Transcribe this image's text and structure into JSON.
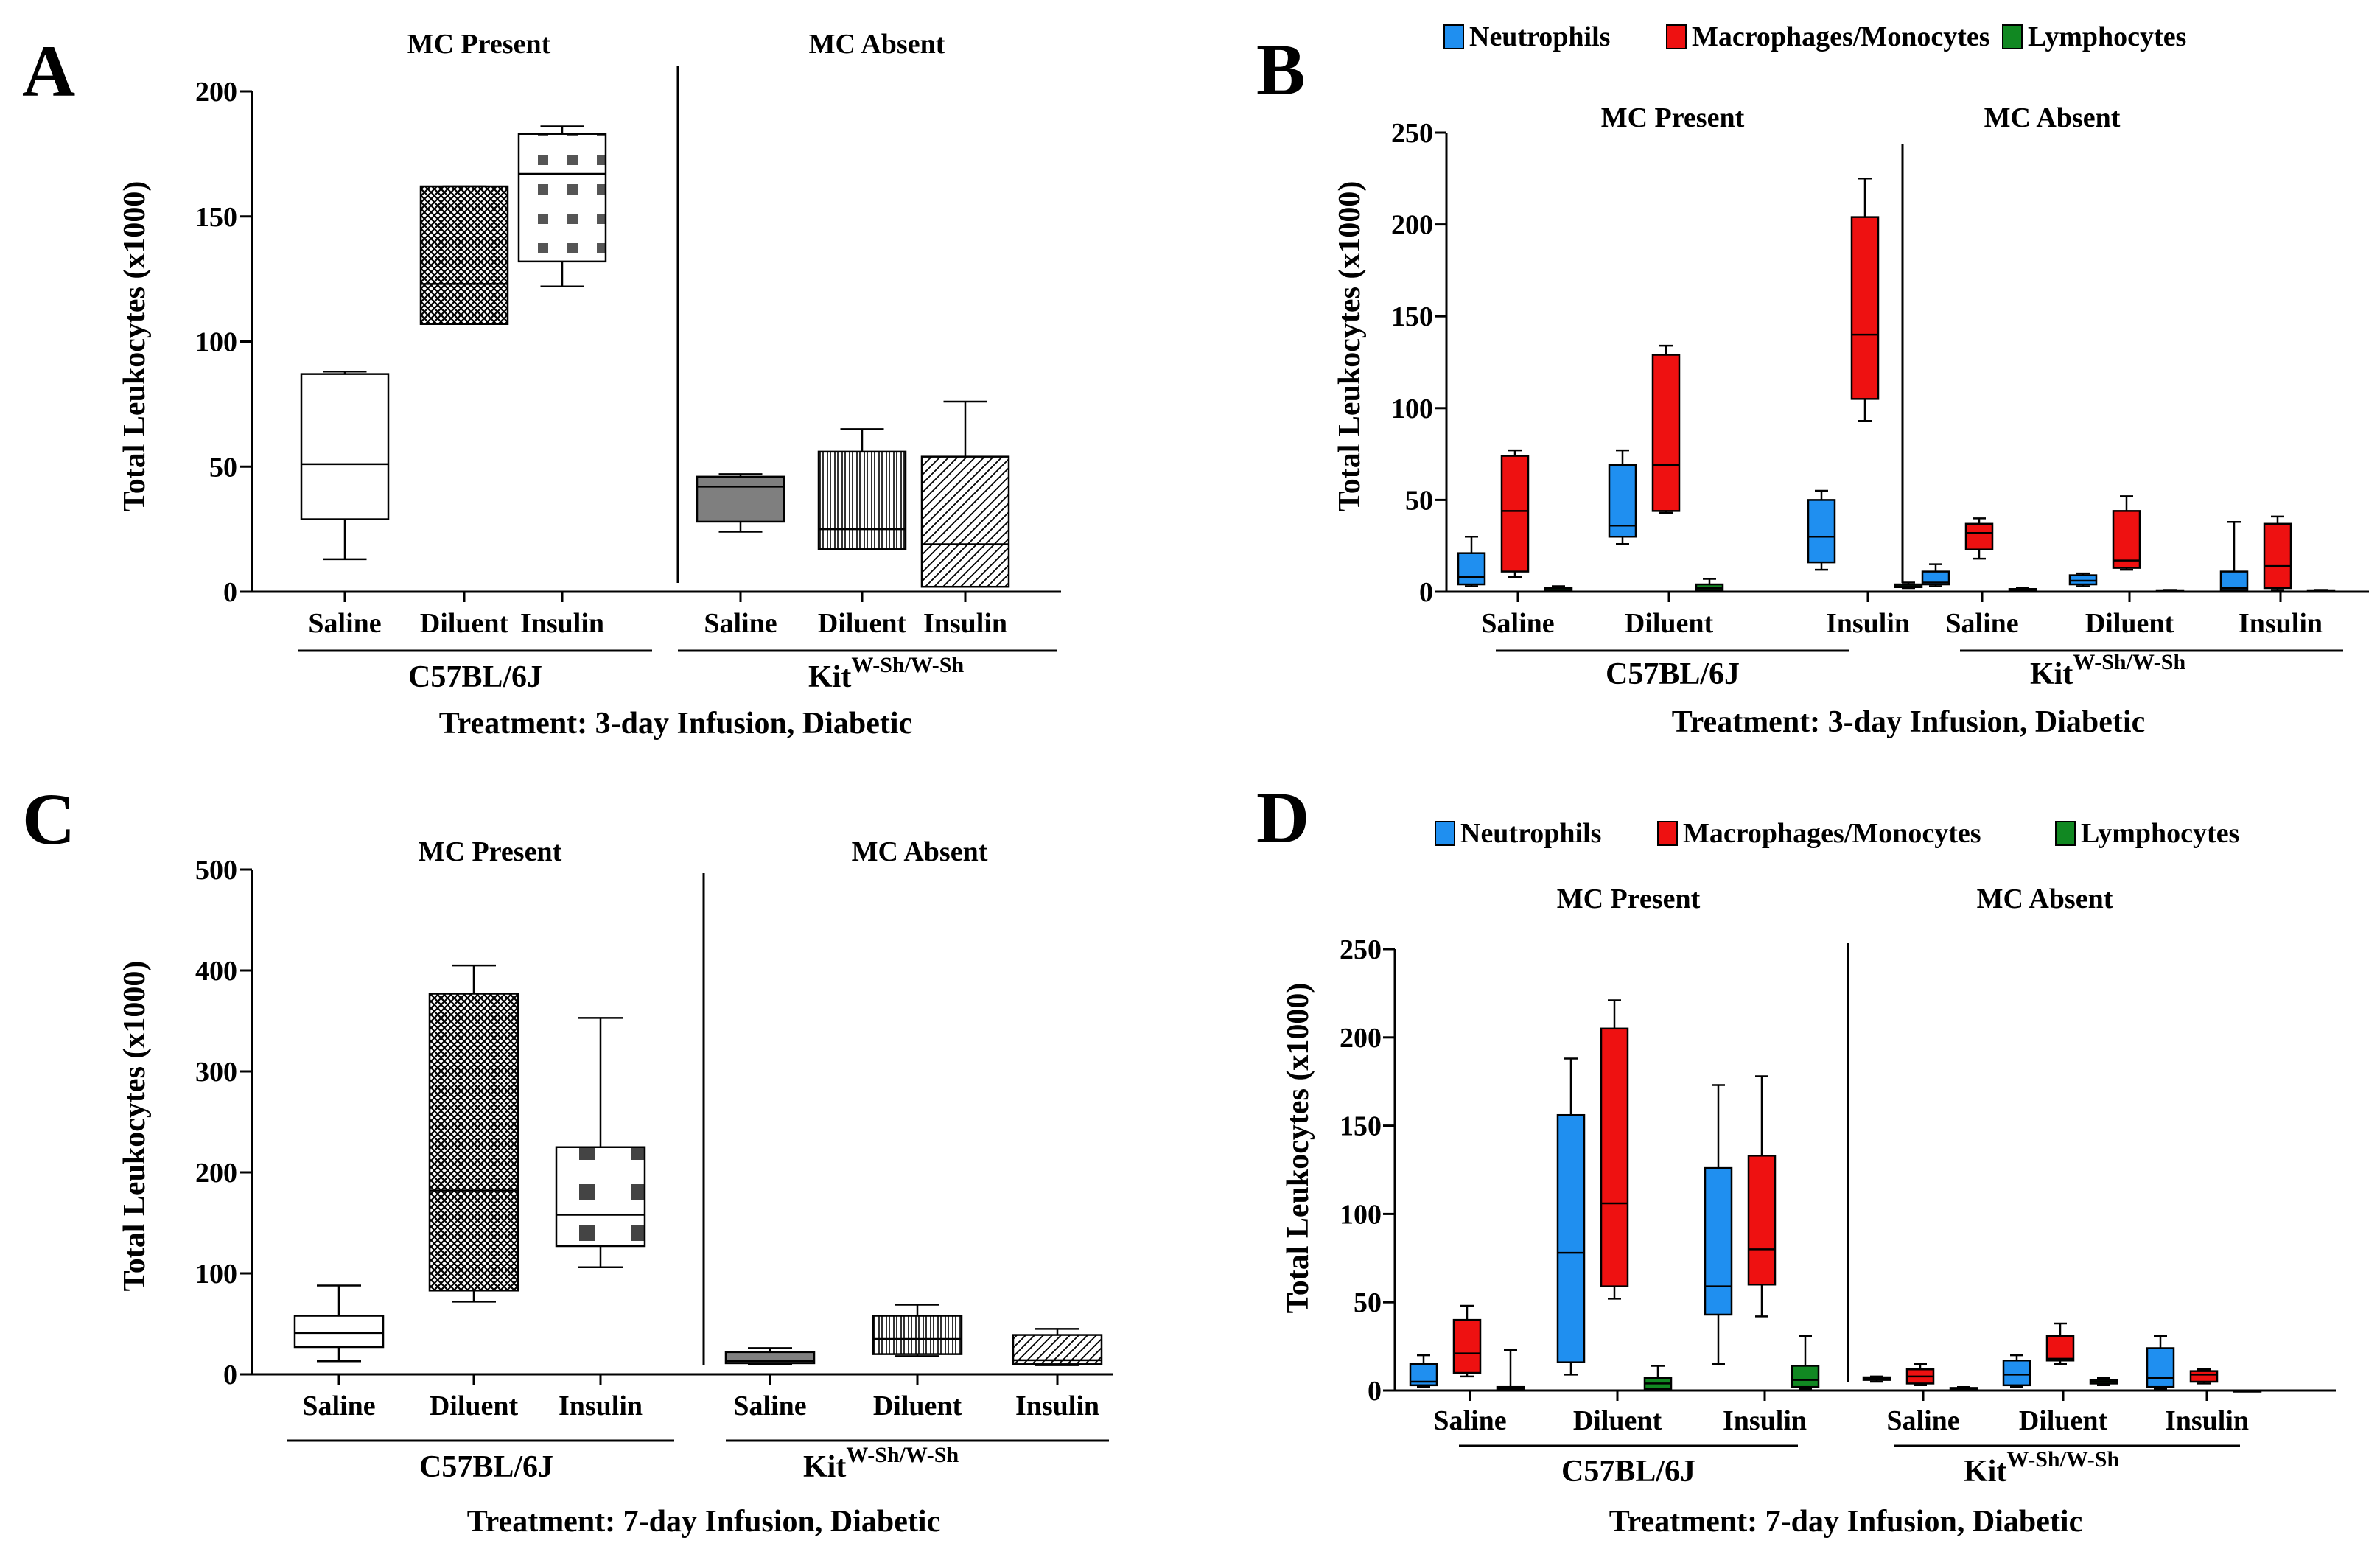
{
  "figure": {
    "colors": {
      "neutrophils": "#1f8ff0",
      "macrophages": "#ee1111",
      "lymphocytes": "#118822",
      "ink": "#000000",
      "dark_fill": "#7f7f7f"
    }
  },
  "chart_data": [
    {
      "type": "box",
      "panel": "A",
      "title_left": "MC Present",
      "title_right": "MC Absent",
      "ylabel": "Total Leukocytes (x1000)",
      "ylim": [
        0,
        200
      ],
      "yticks": [
        0,
        50,
        100,
        150,
        200
      ],
      "categories": [
        "Saline",
        "Diluent",
        "Insulin",
        "Saline",
        "Diluent",
        "Insulin"
      ],
      "strain_left": "C57BL/6J",
      "strain_right_base": "Kit",
      "strain_right_sup": "W-Sh/W-Sh",
      "treatment": "Treatment: 3-day Infusion, Diabetic",
      "boxes": [
        {
          "group": "Saline",
          "strain": "C57BL/6J",
          "min": 13,
          "q1": 29,
          "median": 51,
          "q3": 87,
          "max": 88,
          "pattern": "white"
        },
        {
          "group": "Diluent",
          "strain": "C57BL/6J",
          "min": 107,
          "q1": 107,
          "median": 123,
          "q3": 162,
          "max": 162,
          "pattern": "crosshatch"
        },
        {
          "group": "Insulin",
          "strain": "C57BL/6J",
          "min": 122,
          "q1": 132,
          "median": 167,
          "q3": 183,
          "max": 186,
          "pattern": "dots"
        },
        {
          "group": "Saline",
          "strain": "KitW-Sh/W-Sh",
          "min": 24,
          "q1": 28,
          "median": 42,
          "q3": 46,
          "max": 47,
          "pattern": "gray"
        },
        {
          "group": "Diluent",
          "strain": "KitW-Sh/W-Sh",
          "min": 17,
          "q1": 17,
          "median": 25,
          "q3": 56,
          "max": 65,
          "pattern": "vlines"
        },
        {
          "group": "Insulin",
          "strain": "KitW-Sh/W-Sh",
          "min": 2,
          "q1": 2,
          "median": 19,
          "q3": 54,
          "max": 76,
          "pattern": "diag"
        }
      ]
    },
    {
      "type": "box",
      "panel": "B",
      "title_left": "MC Present",
      "title_right": "MC Absent",
      "ylabel": "Total Leukocytes (x1000)",
      "ylim": [
        0,
        250
      ],
      "yticks": [
        0,
        50,
        100,
        150,
        200,
        250
      ],
      "legend": [
        "Neutrophils",
        "Macrophages/Monocytes",
        "Lymphocytes"
      ],
      "categories": [
        "Saline",
        "Diluent",
        "Insulin",
        "Saline",
        "Diluent",
        "Insulin"
      ],
      "strain_left": "C57BL/6J",
      "strain_right_base": "Kit",
      "strain_right_sup": "W-Sh/W-Sh",
      "treatment": "Treatment: 3-day Infusion, Diabetic",
      "series": [
        {
          "name": "Neutrophils",
          "boxes": [
            {
              "min": 3,
              "q1": 4,
              "median": 8,
              "q3": 21,
              "max": 30
            },
            {
              "min": 26,
              "q1": 30,
              "median": 36,
              "q3": 69,
              "max": 77
            },
            {
              "min": 12,
              "q1": 16,
              "median": 30,
              "q3": 50,
              "max": 55
            },
            {
              "min": 3,
              "q1": 4,
              "median": 5,
              "q3": 11,
              "max": 15
            },
            {
              "min": 3,
              "q1": 4,
              "median": 6,
              "q3": 9,
              "max": 10
            },
            {
              "min": 1,
              "q1": 1,
              "median": 2,
              "q3": 11,
              "max": 38
            }
          ]
        },
        {
          "name": "Macrophages/Monocytes",
          "boxes": [
            {
              "min": 8,
              "q1": 11,
              "median": 44,
              "q3": 74,
              "max": 77
            },
            {
              "min": 43,
              "q1": 44,
              "median": 69,
              "q3": 129,
              "max": 134
            },
            {
              "min": 93,
              "q1": 105,
              "median": 140,
              "q3": 204,
              "max": 225
            },
            {
              "min": 18,
              "q1": 23,
              "median": 32,
              "q3": 37,
              "max": 40
            },
            {
              "min": 12,
              "q1": 13,
              "median": 17,
              "q3": 44,
              "max": 52
            },
            {
              "min": 1,
              "q1": 2,
              "median": 14,
              "q3": 37,
              "max": 41
            }
          ]
        },
        {
          "name": "Lymphocytes",
          "boxes": [
            {
              "min": 0,
              "q1": 0.5,
              "median": 1,
              "q3": 2,
              "max": 3
            },
            {
              "min": 0,
              "q1": 1,
              "median": 2,
              "q3": 4,
              "max": 7
            },
            {
              "min": 2,
              "q1": 2.5,
              "median": 3,
              "q3": 4,
              "max": 5
            },
            {
              "min": 0,
              "q1": 0.5,
              "median": 1,
              "q3": 1.5,
              "max": 2
            },
            {
              "min": 0,
              "q1": 0,
              "median": 0.5,
              "q3": 0.8,
              "max": 1
            },
            {
              "min": 0,
              "q1": 0,
              "median": 0.5,
              "q3": 0.8,
              "max": 1
            }
          ]
        }
      ]
    },
    {
      "type": "box",
      "panel": "C",
      "title_left": "MC Present",
      "title_right": "MC Absent",
      "ylabel": "Total Leukocytes (x1000)",
      "ylim": [
        0,
        500
      ],
      "yticks": [
        0,
        100,
        200,
        300,
        400,
        500
      ],
      "categories": [
        "Saline",
        "Diluent",
        "Insulin",
        "Saline",
        "Diluent",
        "Insulin"
      ],
      "strain_left": "C57BL/6J",
      "strain_right_base": "Kit",
      "strain_right_sup": "W-Sh/W-Sh",
      "treatment": "Treatment: 7-day Infusion, Diabetic",
      "boxes": [
        {
          "group": "Saline",
          "strain": "C57BL/6J",
          "min": 13,
          "q1": 27,
          "median": 41,
          "q3": 58,
          "max": 88,
          "pattern": "white"
        },
        {
          "group": "Diluent",
          "strain": "C57BL/6J",
          "min": 72,
          "q1": 83,
          "median": 182,
          "q3": 377,
          "max": 405,
          "pattern": "crosshatch"
        },
        {
          "group": "Insulin",
          "strain": "C57BL/6J",
          "min": 106,
          "q1": 127,
          "median": 158,
          "q3": 225,
          "max": 353,
          "pattern": "dots"
        },
        {
          "group": "Saline",
          "strain": "KitW-Sh/W-Sh",
          "min": 10,
          "q1": 11,
          "median": 13,
          "q3": 22,
          "max": 26,
          "pattern": "gray"
        },
        {
          "group": "Diluent",
          "strain": "KitW-Sh/W-Sh",
          "min": 18,
          "q1": 20,
          "median": 35,
          "q3": 58,
          "max": 69,
          "pattern": "vlines"
        },
        {
          "group": "Insulin",
          "strain": "KitW-Sh/W-Sh",
          "min": 9,
          "q1": 10,
          "median": 14,
          "q3": 39,
          "max": 45,
          "pattern": "diag"
        }
      ]
    },
    {
      "type": "box",
      "panel": "D",
      "title_left": "MC Present",
      "title_right": "MC Absent",
      "ylabel": "Total Leukocytes (x1000)",
      "ylim": [
        0,
        250
      ],
      "yticks": [
        0,
        50,
        100,
        150,
        200,
        250
      ],
      "legend": [
        "Neutrophils",
        "Macrophages/Monocytes",
        "Lymphocytes"
      ],
      "categories": [
        "Saline",
        "Diluent",
        "Insulin",
        "Saline",
        "Diluent",
        "Insulin"
      ],
      "strain_left": "C57BL/6J",
      "strain_right_base": "Kit",
      "strain_right_sup": "W-Sh/W-Sh",
      "treatment": "Treatment: 7-day Infusion, Diabetic",
      "series": [
        {
          "name": "Neutrophils",
          "boxes": [
            {
              "min": 2,
              "q1": 3,
              "median": 5,
              "q3": 15,
              "max": 20
            },
            {
              "min": 9,
              "q1": 16,
              "median": 78,
              "q3": 156,
              "max": 188
            },
            {
              "min": 15,
              "q1": 43,
              "median": 59,
              "q3": 126,
              "max": 173
            },
            {
              "min": 5,
              "q1": 6,
              "median": 7,
              "q3": 7.5,
              "max": 8
            },
            {
              "min": 2,
              "q1": 3,
              "median": 9,
              "q3": 17,
              "max": 20
            },
            {
              "min": 1,
              "q1": 2,
              "median": 7,
              "q3": 24,
              "max": 31
            }
          ]
        },
        {
          "name": "Macrophages/Monocytes",
          "boxes": [
            {
              "min": 8,
              "q1": 10,
              "median": 21,
              "q3": 40,
              "max": 48
            },
            {
              "min": 52,
              "q1": 59,
              "median": 106,
              "q3": 205,
              "max": 221
            },
            {
              "min": 42,
              "q1": 60,
              "median": 80,
              "q3": 133,
              "max": 178
            },
            {
              "min": 3,
              "q1": 4,
              "median": 8,
              "q3": 12,
              "max": 15
            },
            {
              "min": 15,
              "q1": 17,
              "median": 18,
              "q3": 31,
              "max": 38
            },
            {
              "min": 4,
              "q1": 5,
              "median": 9,
              "q3": 11,
              "max": 12
            }
          ]
        },
        {
          "name": "Lymphocytes",
          "boxes": [
            {
              "min": 0,
              "q1": 1,
              "median": 1,
              "q3": 2,
              "max": 23
            },
            {
              "min": 0,
              "q1": 1,
              "median": 4,
              "q3": 7,
              "max": 14
            },
            {
              "min": 1,
              "q1": 2,
              "median": 6,
              "q3": 14,
              "max": 31
            },
            {
              "min": 0,
              "q1": 0.5,
              "median": 1,
              "q3": 1.5,
              "max": 2
            },
            {
              "min": 3,
              "q1": 4,
              "median": 5,
              "q3": 6,
              "max": 7
            },
            {
              "min": 0,
              "q1": 0,
              "median": 0,
              "q3": 0,
              "max": 0
            }
          ]
        }
      ]
    }
  ]
}
